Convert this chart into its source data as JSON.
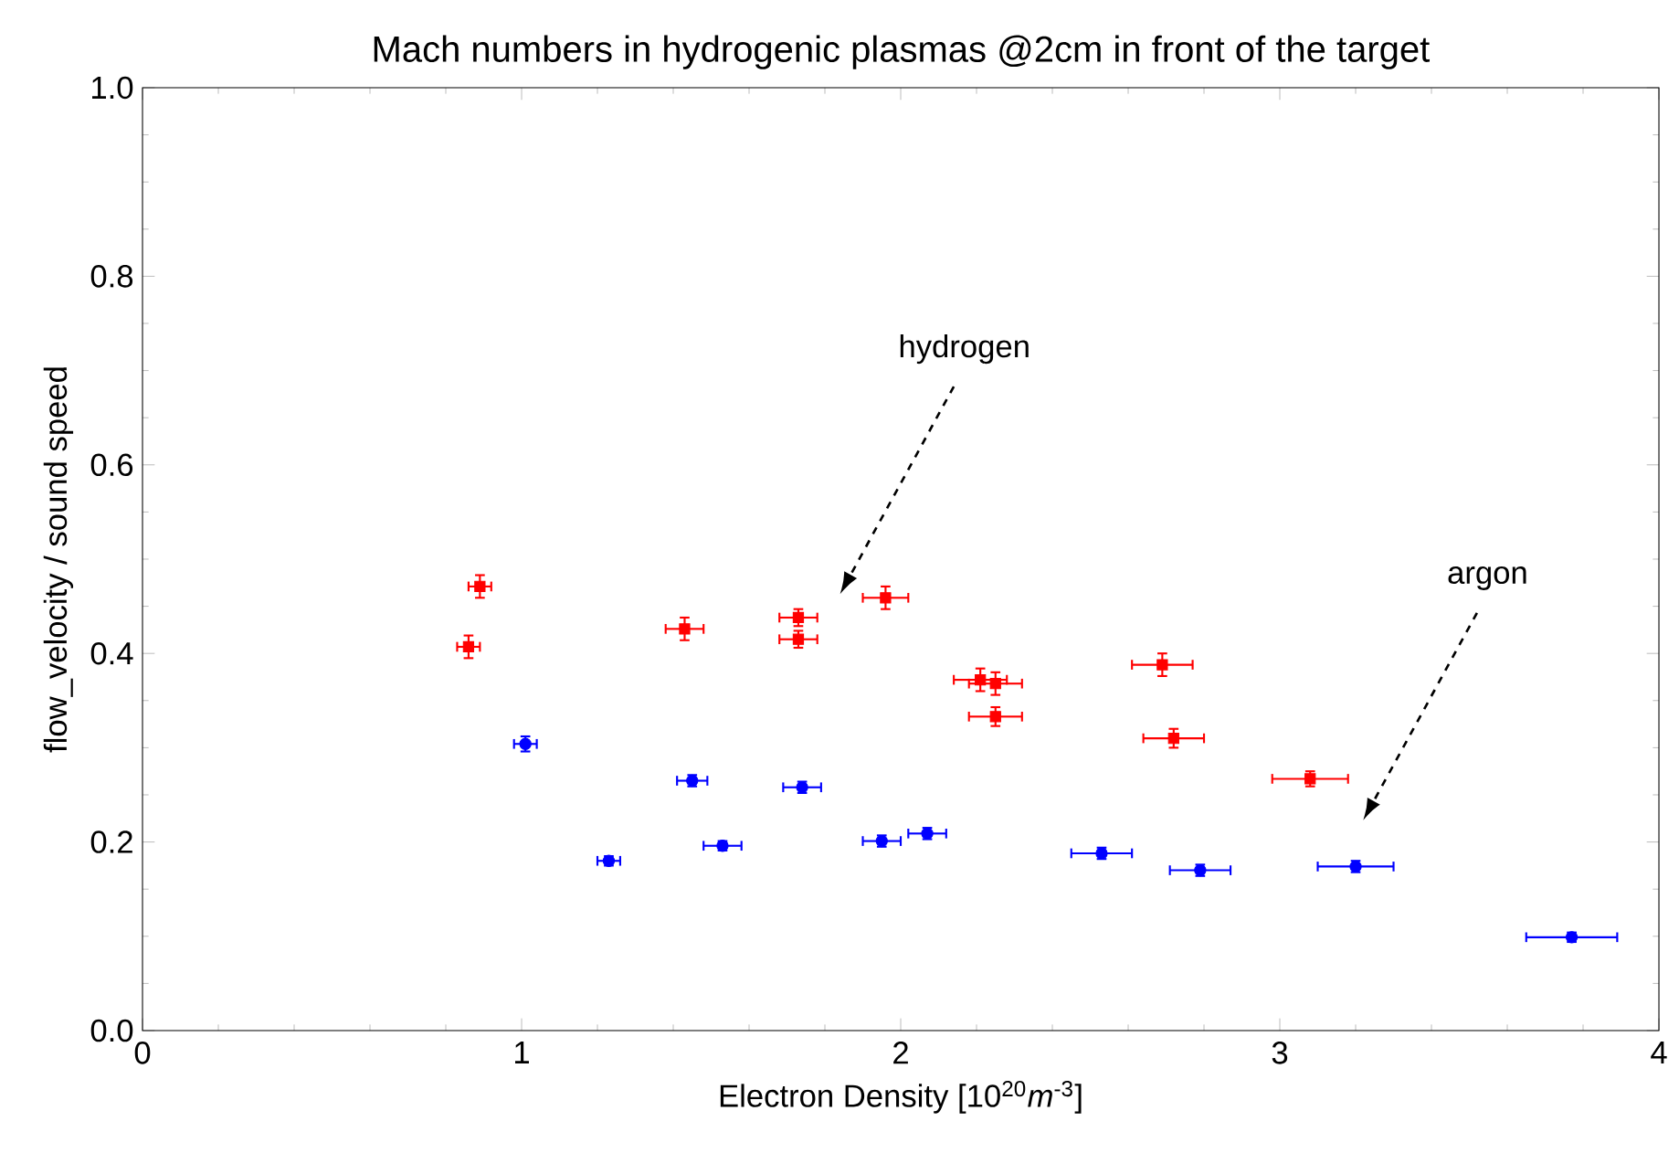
{
  "chart_data": {
    "type": "scatter",
    "title": "Mach numbers in hydrogenic plasmas @2cm in front of the target",
    "xlabel": "Electron Density [10$^{20}$*m*$^{-3}$]",
    "ylabel": "flow_velocity / sound speed",
    "xlim": [
      0,
      4
    ],
    "xticks": [
      0,
      1,
      2,
      3,
      4
    ],
    "ylim": [
      0,
      1
    ],
    "yticks": [
      {
        "value": 0,
        "label": "0.0"
      },
      {
        "value": 0.2,
        "label": "0.2"
      },
      {
        "value": 0.4,
        "label": "0.4"
      },
      {
        "value": 0.6,
        "label": "0.6"
      },
      {
        "value": 0.8,
        "label": "0.8"
      },
      {
        "value": 1,
        "label": "1.0"
      }
    ],
    "grid": false,
    "annotations": [
      "hydrogen",
      "argon"
    ],
    "series": [
      {
        "color": "#ff0000",
        "marker": "square",
        "x": [
          0.86,
          0.89,
          1.43,
          1.73,
          1.73,
          1.96,
          2.21,
          2.25,
          2.25,
          2.69,
          2.72,
          3.08
        ],
        "values": [
          0.407,
          0.471,
          0.426,
          0.438,
          0.415,
          0.459,
          0.372,
          0.368,
          0.333,
          0.388,
          0.31,
          0.267
        ],
        "errors": [
          0.012,
          0.012,
          0.012,
          0.009,
          0.009,
          0.012,
          0.012,
          0.012,
          0.01,
          0.012,
          0.01,
          0.008
        ],
        "xerrors": [
          0.03,
          0.03,
          0.05,
          0.05,
          0.05,
          0.06,
          0.07,
          0.07,
          0.07,
          0.08,
          0.08,
          0.1
        ]
      },
      {
        "color": "#0000ff",
        "marker": "circle",
        "x": [
          1.01,
          1.23,
          1.45,
          1.53,
          1.74,
          1.95,
          2.07,
          2.53,
          2.79,
          3.2,
          3.77
        ],
        "values": [
          0.304,
          0.18,
          0.265,
          0.196,
          0.258,
          0.201,
          0.209,
          0.188,
          0.17,
          0.174,
          0.099
        ],
        "errors": [
          0.008,
          0.005,
          0.006,
          0.005,
          0.006,
          0.006,
          0.006,
          0.006,
          0.006,
          0.006,
          0.005
        ],
        "xerrors": [
          0.03,
          0.03,
          0.04,
          0.05,
          0.05,
          0.05,
          0.05,
          0.08,
          0.08,
          0.1,
          0.12
        ]
      }
    ]
  }
}
